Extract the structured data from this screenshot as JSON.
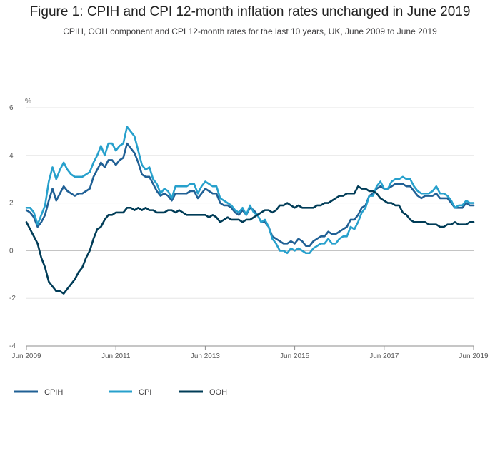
{
  "title": "Figure 1: CPIH and CPI 12-month inflation rates unchanged in June 2019",
  "subtitle": "CPIH, OOH component and CPI 12-month rates for the last 10 years, UK, June 2009 to June 2019",
  "chart_data": {
    "type": "line",
    "ylabel": "%",
    "ylim": [
      -4,
      6
    ],
    "yticks": [
      -4,
      -2,
      0,
      2,
      4,
      6
    ],
    "xlim_months": [
      "2009-06",
      "2019-06"
    ],
    "xtick_labels": [
      "Jun 2009",
      "Jun 2011",
      "Jun 2013",
      "Jun 2015",
      "Jun 2017",
      "Jun 2019"
    ],
    "grid": "horizontal",
    "legend": "bottom-left",
    "series": [
      {
        "name": "CPIH",
        "color": "#206095",
        "values": [
          1.7,
          1.6,
          1.4,
          1.0,
          1.2,
          1.5,
          2.1,
          2.6,
          2.1,
          2.4,
          2.7,
          2.5,
          2.4,
          2.3,
          2.4,
          2.4,
          2.5,
          2.6,
          3.1,
          3.4,
          3.7,
          3.5,
          3.8,
          3.8,
          3.6,
          3.8,
          3.9,
          4.5,
          4.3,
          4.1,
          3.7,
          3.2,
          3.1,
          3.1,
          2.8,
          2.5,
          2.3,
          2.4,
          2.3,
          2.1,
          2.4,
          2.4,
          2.4,
          2.4,
          2.5,
          2.5,
          2.2,
          2.4,
          2.6,
          2.5,
          2.4,
          2.4,
          2.0,
          1.9,
          1.9,
          1.8,
          1.6,
          1.5,
          1.7,
          1.5,
          1.8,
          1.7,
          1.5,
          1.2,
          1.2,
          1.0,
          0.6,
          0.5,
          0.4,
          0.3,
          0.3,
          0.4,
          0.3,
          0.5,
          0.4,
          0.2,
          0.2,
          0.4,
          0.5,
          0.6,
          0.6,
          0.8,
          0.7,
          0.7,
          0.8,
          0.9,
          1.0,
          1.3,
          1.3,
          1.5,
          1.8,
          1.9,
          2.3,
          2.4,
          2.6,
          2.7,
          2.6,
          2.6,
          2.7,
          2.8,
          2.8,
          2.8,
          2.7,
          2.7,
          2.5,
          2.3,
          2.2,
          2.3,
          2.3,
          2.3,
          2.4,
          2.2,
          2.2,
          2.2,
          2.0,
          1.8,
          1.8,
          1.8,
          2.0,
          1.9,
          1.9
        ]
      },
      {
        "name": "CPI",
        "color": "#27a0cc",
        "values": [
          1.8,
          1.8,
          1.6,
          1.1,
          1.5,
          1.9,
          2.9,
          3.5,
          3.0,
          3.4,
          3.7,
          3.4,
          3.2,
          3.1,
          3.1,
          3.1,
          3.2,
          3.3,
          3.7,
          4.0,
          4.4,
          4.0,
          4.5,
          4.5,
          4.2,
          4.4,
          4.5,
          5.2,
          5.0,
          4.8,
          4.2,
          3.6,
          3.4,
          3.5,
          3.0,
          2.8,
          2.4,
          2.6,
          2.5,
          2.2,
          2.7,
          2.7,
          2.7,
          2.7,
          2.8,
          2.8,
          2.4,
          2.7,
          2.9,
          2.8,
          2.7,
          2.7,
          2.2,
          2.1,
          2.0,
          1.9,
          1.7,
          1.6,
          1.8,
          1.5,
          1.9,
          1.6,
          1.5,
          1.2,
          1.3,
          1.0,
          0.5,
          0.3,
          0.0,
          0.0,
          -0.1,
          0.1,
          0.0,
          0.1,
          0.0,
          -0.1,
          -0.1,
          0.1,
          0.2,
          0.3,
          0.3,
          0.5,
          0.3,
          0.3,
          0.5,
          0.6,
          0.6,
          1.0,
          0.9,
          1.2,
          1.6,
          1.8,
          2.3,
          2.3,
          2.7,
          2.9,
          2.6,
          2.6,
          2.9,
          3.0,
          3.0,
          3.1,
          3.0,
          3.0,
          2.7,
          2.5,
          2.4,
          2.4,
          2.4,
          2.5,
          2.7,
          2.4,
          2.4,
          2.3,
          2.1,
          1.8,
          1.9,
          1.9,
          2.1,
          2.0,
          2.0
        ]
      },
      {
        "name": "OOH",
        "color": "#003c57",
        "values": [
          1.2,
          0.9,
          0.6,
          0.3,
          -0.3,
          -0.7,
          -1.3,
          -1.5,
          -1.7,
          -1.7,
          -1.8,
          -1.6,
          -1.4,
          -1.2,
          -0.9,
          -0.7,
          -0.3,
          0.0,
          0.5,
          0.9,
          1.0,
          1.3,
          1.5,
          1.5,
          1.6,
          1.6,
          1.6,
          1.8,
          1.8,
          1.7,
          1.8,
          1.7,
          1.8,
          1.7,
          1.7,
          1.6,
          1.6,
          1.6,
          1.7,
          1.7,
          1.6,
          1.7,
          1.6,
          1.5,
          1.5,
          1.5,
          1.5,
          1.5,
          1.5,
          1.4,
          1.5,
          1.4,
          1.2,
          1.3,
          1.4,
          1.3,
          1.3,
          1.3,
          1.2,
          1.3,
          1.3,
          1.4,
          1.5,
          1.6,
          1.7,
          1.7,
          1.6,
          1.7,
          1.9,
          1.9,
          2.0,
          1.9,
          1.8,
          1.9,
          1.8,
          1.8,
          1.8,
          1.8,
          1.9,
          1.9,
          2.0,
          2.0,
          2.1,
          2.2,
          2.3,
          2.3,
          2.4,
          2.4,
          2.4,
          2.7,
          2.6,
          2.6,
          2.5,
          2.5,
          2.4,
          2.2,
          2.1,
          2.0,
          2.0,
          1.9,
          1.9,
          1.6,
          1.5,
          1.3,
          1.2,
          1.2,
          1.2,
          1.2,
          1.1,
          1.1,
          1.1,
          1.0,
          1.0,
          1.1,
          1.1,
          1.2,
          1.1,
          1.1,
          1.1,
          1.2,
          1.2
        ]
      }
    ]
  }
}
